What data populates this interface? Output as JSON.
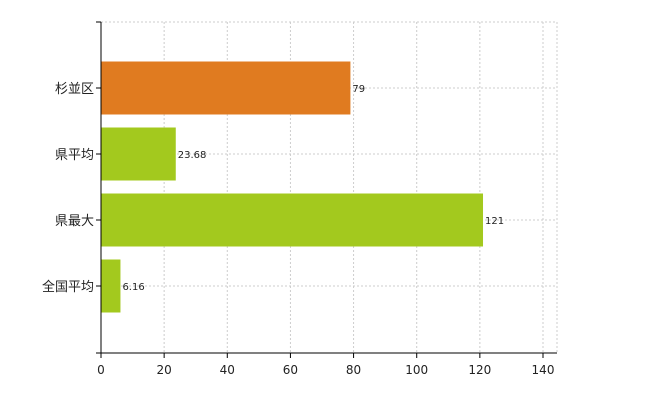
{
  "chart_data": {
    "type": "bar",
    "orientation": "horizontal",
    "categories": [
      "杉並区",
      "県平均",
      "県最大",
      "全国平均"
    ],
    "values": [
      79,
      23.68,
      121,
      6.16
    ],
    "data_labels": [
      "79",
      "23.68",
      "121",
      "6.16"
    ],
    "bar_colors": [
      "#e07b20",
      "#a3c91e",
      "#a3c91e",
      "#a3c91e"
    ],
    "xlim": [
      0,
      140
    ],
    "xticks": [
      0,
      20,
      40,
      60,
      80,
      100,
      120,
      140
    ],
    "xtick_labels": [
      "0",
      "20",
      "40",
      "60",
      "80",
      "100",
      "120",
      "140"
    ],
    "grid": true,
    "grid_color": "#cccccc",
    "axis_color": "#000000",
    "title": "",
    "xlabel": "",
    "ylabel": ""
  }
}
